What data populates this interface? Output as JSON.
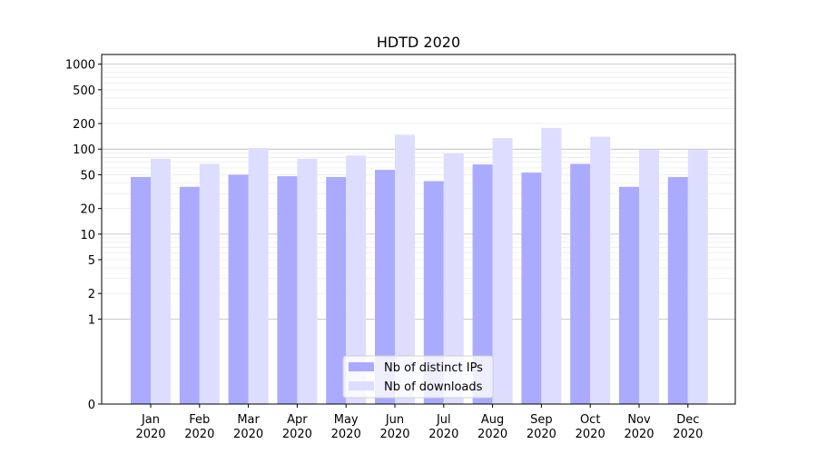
{
  "chart_data": {
    "type": "bar",
    "title": "HDTD 2020",
    "xlabel": "",
    "ylabel": "",
    "y_scale": "symlog",
    "ylim": [
      0,
      1300
    ],
    "y_ticks": [
      0,
      1,
      2,
      5,
      10,
      20,
      50,
      100,
      200,
      500,
      1000
    ],
    "y_tick_labels": [
      "0",
      "1",
      "2",
      "5",
      "10",
      "20",
      "50",
      "100",
      "200",
      "500",
      "1000"
    ],
    "grid": true,
    "legend_position": "bottom-center",
    "categories": [
      "Jan\n2020",
      "Feb\n2020",
      "Mar\n2020",
      "Apr\n2020",
      "May\n2020",
      "Jun\n2020",
      "Jul\n2020",
      "Aug\n2020",
      "Sep\n2020",
      "Oct\n2020",
      "Nov\n2020",
      "Dec\n2020"
    ],
    "series": [
      {
        "name": "Nb of distinct IPs",
        "color": "#aaaaff",
        "values": [
          47,
          36,
          50,
          48,
          47,
          57,
          42,
          66,
          53,
          67,
          36,
          47
        ]
      },
      {
        "name": "Nb of downloads",
        "color": "#ddddff",
        "values": [
          77,
          67,
          103,
          77,
          84,
          148,
          89,
          135,
          178,
          140,
          98,
          98
        ]
      }
    ]
  }
}
